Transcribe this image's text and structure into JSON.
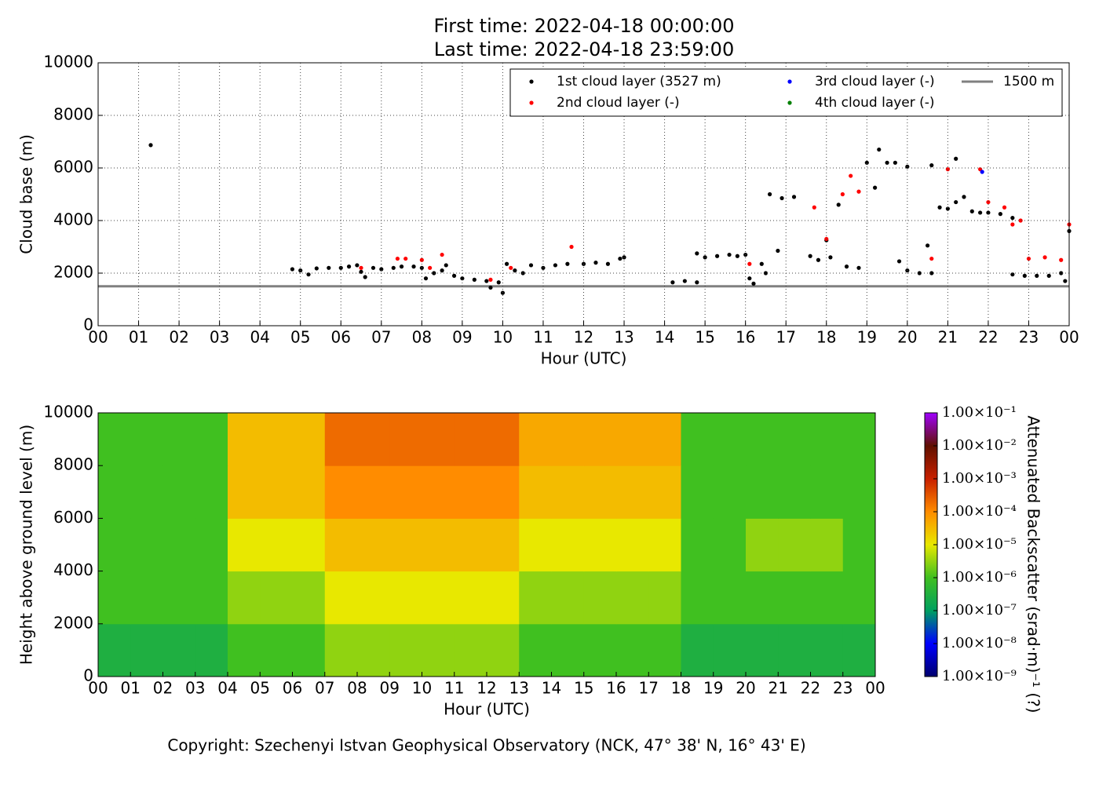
{
  "chart_data": [
    {
      "type": "scatter",
      "title": [
        "First time: 2022-04-18 00:00:00",
        "Last time: 2022-04-18 23:59:00"
      ],
      "xlabel": "Hour (UTC)",
      "ylabel": "Cloud base (m)",
      "xlim": [
        0,
        24
      ],
      "ylim": [
        0,
        10000
      ],
      "xticks": [
        {
          "value": 0,
          "label": "00"
        },
        {
          "value": 1,
          "label": "01"
        },
        {
          "value": 2,
          "label": "02"
        },
        {
          "value": 3,
          "label": "03"
        },
        {
          "value": 4,
          "label": "04"
        },
        {
          "value": 5,
          "label": "05"
        },
        {
          "value": 6,
          "label": "06"
        },
        {
          "value": 7,
          "label": "07"
        },
        {
          "value": 8,
          "label": "08"
        },
        {
          "value": 9,
          "label": "09"
        },
        {
          "value": 10,
          "label": "10"
        },
        {
          "value": 11,
          "label": "11"
        },
        {
          "value": 12,
          "label": "12"
        },
        {
          "value": 13,
          "label": "13"
        },
        {
          "value": 14,
          "label": "14"
        },
        {
          "value": 15,
          "label": "15"
        },
        {
          "value": 16,
          "label": "16"
        },
        {
          "value": 17,
          "label": "17"
        },
        {
          "value": 18,
          "label": "18"
        },
        {
          "value": 19,
          "label": "19"
        },
        {
          "value": 20,
          "label": "20"
        },
        {
          "value": 21,
          "label": "21"
        },
        {
          "value": 22,
          "label": "22"
        },
        {
          "value": 23,
          "label": "23"
        },
        {
          "value": 24,
          "label": "00"
        }
      ],
      "yticks": [
        0,
        2000,
        4000,
        6000,
        8000,
        10000
      ],
      "grid": true,
      "legend": "upper right",
      "series": [
        {
          "name": "1st cloud layer (3527 m)",
          "color": "#000000",
          "x": [
            1.3,
            4.8,
            5.0,
            5.2,
            5.4,
            5.7,
            6.0,
            6.2,
            6.4,
            6.5,
            6.6,
            6.8,
            7.0,
            7.3,
            7.5,
            7.8,
            8.0,
            8.1,
            8.3,
            8.5,
            8.6,
            8.8,
            9.0,
            9.3,
            9.6,
            9.7,
            9.9,
            10.0,
            10.1,
            10.3,
            10.5,
            10.7,
            11.0,
            11.3,
            11.6,
            12.0,
            12.3,
            12.6,
            12.9,
            13.0,
            14.2,
            14.5,
            14.8,
            14.8,
            15.0,
            15.3,
            15.6,
            15.8,
            16.0,
            16.1,
            16.2,
            16.4,
            16.5,
            16.6,
            16.8,
            16.9,
            17.2,
            17.6,
            17.8,
            18.0,
            18.1,
            18.3,
            18.5,
            18.8,
            19.0,
            19.2,
            19.3,
            19.5,
            19.7,
            19.8,
            20.0,
            20.0,
            20.3,
            20.5,
            20.6,
            20.6,
            20.8,
            21.0,
            21.2,
            21.2,
            21.4,
            21.6,
            21.8,
            22.0,
            22.3,
            22.6,
            22.6,
            22.9,
            23.2,
            23.5,
            23.8,
            23.9,
            24.0
          ],
          "values": [
            6870,
            2150,
            2100,
            1950,
            2180,
            2200,
            2200,
            2250,
            2300,
            2050,
            1850,
            2200,
            2150,
            2200,
            2250,
            2250,
            2200,
            1800,
            2000,
            2100,
            2300,
            1900,
            1800,
            1750,
            1700,
            1450,
            1650,
            1250,
            2350,
            2100,
            2000,
            2300,
            2200,
            2300,
            2350,
            2350,
            2400,
            2350,
            2550,
            2600,
            1650,
            1700,
            1650,
            2750,
            2600,
            2650,
            2700,
            2650,
            2700,
            1800,
            1600,
            2350,
            2000,
            5000,
            2850,
            4850,
            4900,
            2650,
            2500,
            3250,
            2600,
            4600,
            2250,
            2200,
            6200,
            5250,
            6700,
            6200,
            6200,
            2450,
            6050,
            2100,
            2000,
            3050,
            2000,
            6100,
            4500,
            4450,
            4700,
            6350,
            4900,
            4350,
            4300,
            4300,
            4250,
            4100,
            1950,
            1900,
            1900,
            1900,
            2000,
            1700,
            3600
          ]
        },
        {
          "name": "2nd cloud layer (-)",
          "color": "#ff0000",
          "x": [
            6.5,
            7.4,
            7.6,
            8.0,
            8.2,
            8.5,
            9.7,
            10.2,
            11.7,
            16.1,
            17.7,
            18.0,
            18.4,
            18.6,
            18.8,
            20.6,
            21.0,
            21.8,
            22.0,
            22.4,
            22.6,
            22.8,
            23.0,
            23.4,
            23.8,
            24.0
          ],
          "values": [
            2200,
            2550,
            2550,
            2500,
            2200,
            2700,
            1750,
            2200,
            3000,
            2350,
            4500,
            3300,
            5000,
            5700,
            5100,
            2550,
            5950,
            5950,
            4700,
            4500,
            3850,
            4000,
            2550,
            2600,
            2500,
            3850
          ]
        },
        {
          "name": "3rd cloud layer (-)",
          "color": "#0000ff",
          "x": [
            21.85
          ],
          "values": [
            5850
          ]
        },
        {
          "name": "4th cloud layer (-)",
          "color": "#008000",
          "x": [],
          "values": []
        }
      ],
      "reference_line": {
        "name": "1500 m",
        "value": 1500,
        "color": "#808080"
      }
    },
    {
      "type": "heatmap",
      "xlabel": "Hour (UTC)",
      "ylabel": "Height above ground level (m)",
      "xlim": [
        0,
        24
      ],
      "ylim": [
        0,
        10000
      ],
      "xticks": [
        {
          "value": 0,
          "label": "00"
        },
        {
          "value": 1,
          "label": "01"
        },
        {
          "value": 2,
          "label": "02"
        },
        {
          "value": 3,
          "label": "03"
        },
        {
          "value": 4,
          "label": "04"
        },
        {
          "value": 5,
          "label": "05"
        },
        {
          "value": 6,
          "label": "06"
        },
        {
          "value": 7,
          "label": "07"
        },
        {
          "value": 8,
          "label": "08"
        },
        {
          "value": 9,
          "label": "09"
        },
        {
          "value": 10,
          "label": "10"
        },
        {
          "value": 11,
          "label": "11"
        },
        {
          "value": 12,
          "label": "12"
        },
        {
          "value": 13,
          "label": "13"
        },
        {
          "value": 14,
          "label": "14"
        },
        {
          "value": 15,
          "label": "15"
        },
        {
          "value": 16,
          "label": "16"
        },
        {
          "value": 17,
          "label": "17"
        },
        {
          "value": 18,
          "label": "18"
        },
        {
          "value": 19,
          "label": "19"
        },
        {
          "value": 20,
          "label": "20"
        },
        {
          "value": 21,
          "label": "21"
        },
        {
          "value": 22,
          "label": "22"
        },
        {
          "value": 23,
          "label": "23"
        },
        {
          "value": 24,
          "label": "00"
        }
      ],
      "yticks": [
        0,
        2000,
        4000,
        6000,
        8000,
        10000
      ],
      "x_edges": [
        0,
        1,
        2,
        3,
        4,
        5,
        6,
        7,
        8,
        9,
        10,
        11,
        12,
        13,
        14,
        15,
        16,
        17,
        18,
        19,
        20,
        21,
        22,
        23,
        24
      ],
      "y_edges": [
        0,
        2000,
        4000,
        6000,
        8000,
        10000
      ],
      "values": [
        [
          3e-07,
          3e-07,
          3e-07,
          3e-07,
          1e-06,
          1e-06,
          1e-06,
          3e-06,
          3e-06,
          3e-06,
          3e-06,
          3e-06,
          3e-06,
          1e-06,
          1e-06,
          1e-06,
          1e-06,
          1e-06,
          3e-07,
          3e-07,
          3e-07,
          3e-07,
          3e-07,
          3e-07
        ],
        [
          1e-06,
          1e-06,
          1e-06,
          1e-06,
          3e-06,
          3e-06,
          3e-06,
          1e-05,
          1e-05,
          1e-05,
          1e-05,
          1e-05,
          1e-05,
          3e-06,
          3e-06,
          3e-06,
          3e-06,
          3e-06,
          1e-06,
          1e-06,
          1e-06,
          1e-06,
          1e-06,
          1e-06
        ],
        [
          1e-06,
          1e-06,
          1e-06,
          1e-06,
          1e-05,
          1e-05,
          1e-05,
          3e-05,
          3e-05,
          3e-05,
          3e-05,
          3e-05,
          3e-05,
          1e-05,
          1e-05,
          1e-05,
          1e-05,
          1e-05,
          1e-06,
          1e-06,
          3e-06,
          3e-06,
          3e-06,
          1e-06
        ],
        [
          1e-06,
          1e-06,
          1e-06,
          1e-06,
          3e-05,
          3e-05,
          3e-05,
          0.0001,
          0.0001,
          0.0001,
          0.0001,
          0.0001,
          0.0001,
          3e-05,
          3e-05,
          3e-05,
          3e-05,
          3e-05,
          1e-06,
          1e-06,
          1e-06,
          1e-06,
          1e-06,
          1e-06
        ],
        [
          1e-06,
          1e-06,
          1e-06,
          1e-06,
          3e-05,
          3e-05,
          3e-05,
          0.0002,
          0.0002,
          0.0002,
          0.0002,
          0.0002,
          0.0002,
          5e-05,
          5e-05,
          5e-05,
          5e-05,
          5e-05,
          1e-06,
          1e-06,
          1e-06,
          1e-06,
          1e-06,
          1e-06
        ]
      ],
      "colorbar": {
        "label": "Attenuated Backscatter (srad·m)⁻¹ (?)",
        "log": true,
        "lim": [
          1e-09,
          0.1
        ],
        "colormap": [
          "#00006e",
          "#0000ff",
          "#00a060",
          "#40c020",
          "#e8e800",
          "#ff8c00",
          "#c82000",
          "#601000",
          "#a000ff"
        ],
        "ticks": [
          {
            "value": 1e-09,
            "label": "1.00×10⁻⁹"
          },
          {
            "value": 1e-08,
            "label": "1.00×10⁻⁸"
          },
          {
            "value": 1e-07,
            "label": "1.00×10⁻⁷"
          },
          {
            "value": 1e-06,
            "label": "1.00×10⁻⁶"
          },
          {
            "value": 1e-05,
            "label": "1.00×10⁻⁵"
          },
          {
            "value": 0.0001,
            "label": "1.00×10⁻⁴"
          },
          {
            "value": 0.001,
            "label": "1.00×10⁻³"
          },
          {
            "value": 0.01,
            "label": "1.00×10⁻²"
          },
          {
            "value": 0.1,
            "label": "1.00×10⁻¹"
          }
        ]
      }
    }
  ],
  "footer": "Copyright: Szechenyi Istvan Geophysical Observatory (NCK, 47° 38' N, 16° 43' E)"
}
